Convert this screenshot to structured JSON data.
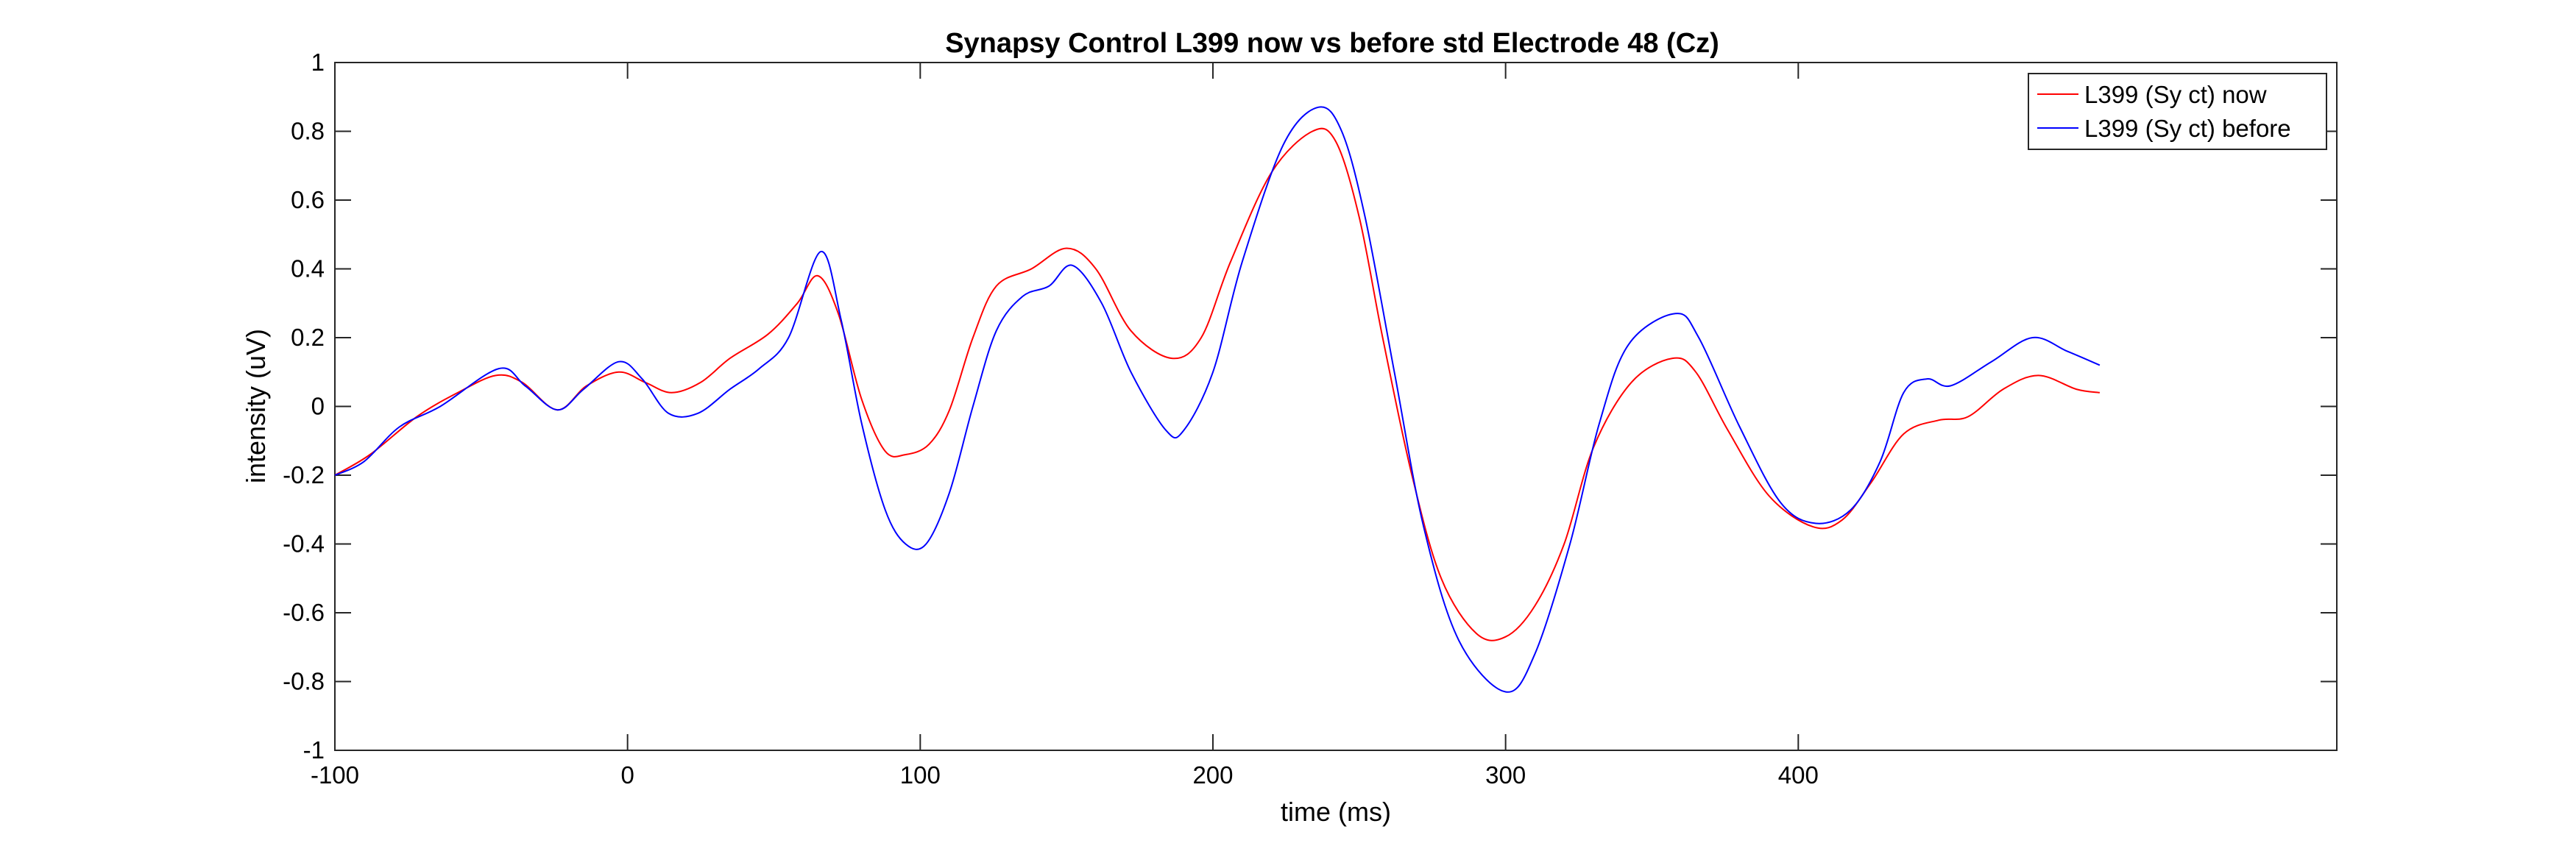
{
  "chart_data": {
    "type": "line",
    "title": "Synapsy Control L399 now vs before std Electrode 48 (Cz)",
    "xlabel": "time (ms)",
    "ylabel": "intensity (uV)",
    "xlim": [
      -100,
      584
    ],
    "ylim": [
      -1,
      1
    ],
    "xticks": [
      -100,
      0,
      100,
      200,
      300,
      400
    ],
    "yticks": [
      -1,
      -0.8,
      -0.6,
      -0.4,
      -0.2,
      0,
      0.2,
      0.4,
      0.6,
      0.8,
      1
    ],
    "grid": false,
    "legend_position": "top-right",
    "series": [
      {
        "name": "L399 (Sy ct) now",
        "color": "#ff0000",
        "points": [
          [
            -100,
            -0.2
          ],
          [
            -88,
            -0.14
          ],
          [
            -72,
            -0.03
          ],
          [
            -58,
            0.04
          ],
          [
            -45,
            0.09
          ],
          [
            -36,
            0.07
          ],
          [
            -24,
            -0.01
          ],
          [
            -14,
            0.06
          ],
          [
            -3,
            0.1
          ],
          [
            6,
            0.07
          ],
          [
            15,
            0.04
          ],
          [
            25,
            0.07
          ],
          [
            35,
            0.14
          ],
          [
            48,
            0.21
          ],
          [
            58,
            0.3
          ],
          [
            65,
            0.38
          ],
          [
            72,
            0.27
          ],
          [
            80,
            0.02
          ],
          [
            88,
            -0.13
          ],
          [
            95,
            -0.14
          ],
          [
            103,
            -0.11
          ],
          [
            110,
            -0.01
          ],
          [
            118,
            0.2
          ],
          [
            126,
            0.35
          ],
          [
            138,
            0.4
          ],
          [
            150,
            0.46
          ],
          [
            160,
            0.4
          ],
          [
            172,
            0.22
          ],
          [
            186,
            0.14
          ],
          [
            196,
            0.2
          ],
          [
            206,
            0.42
          ],
          [
            220,
            0.68
          ],
          [
            234,
            0.8
          ],
          [
            242,
            0.77
          ],
          [
            250,
            0.55
          ],
          [
            258,
            0.2
          ],
          [
            268,
            -0.2
          ],
          [
            278,
            -0.5
          ],
          [
            290,
            -0.66
          ],
          [
            300,
            -0.67
          ],
          [
            310,
            -0.58
          ],
          [
            320,
            -0.4
          ],
          [
            330,
            -0.12
          ],
          [
            343,
            0.07
          ],
          [
            357,
            0.14
          ],
          [
            365,
            0.1
          ],
          [
            376,
            -0.07
          ],
          [
            390,
            -0.26
          ],
          [
            405,
            -0.35
          ],
          [
            415,
            -0.33
          ],
          [
            425,
            -0.22
          ],
          [
            436,
            -0.08
          ],
          [
            448,
            -0.04
          ],
          [
            458,
            -0.03
          ],
          [
            470,
            0.05
          ],
          [
            482,
            0.09
          ],
          [
            495,
            0.05
          ],
          [
            503,
            0.04
          ]
        ]
      },
      {
        "name": "L399 (Sy ct) before",
        "color": "#0000ff",
        "points": [
          [
            -100,
            -0.2
          ],
          [
            -90,
            -0.16
          ],
          [
            -78,
            -0.06
          ],
          [
            -64,
            0.0
          ],
          [
            -44,
            0.11
          ],
          [
            -35,
            0.06
          ],
          [
            -24,
            -0.01
          ],
          [
            -15,
            0.05
          ],
          [
            -3,
            0.13
          ],
          [
            5,
            0.08
          ],
          [
            14,
            -0.02
          ],
          [
            24,
            -0.02
          ],
          [
            35,
            0.05
          ],
          [
            45,
            0.11
          ],
          [
            55,
            0.2
          ],
          [
            66,
            0.45
          ],
          [
            73,
            0.25
          ],
          [
            80,
            -0.05
          ],
          [
            88,
            -0.3
          ],
          [
            95,
            -0.4
          ],
          [
            102,
            -0.4
          ],
          [
            110,
            -0.25
          ],
          [
            118,
            0.0
          ],
          [
            126,
            0.22
          ],
          [
            135,
            0.32
          ],
          [
            144,
            0.35
          ],
          [
            152,
            0.41
          ],
          [
            162,
            0.3
          ],
          [
            172,
            0.1
          ],
          [
            184,
            -0.07
          ],
          [
            190,
            -0.07
          ],
          [
            200,
            0.1
          ],
          [
            210,
            0.42
          ],
          [
            224,
            0.76
          ],
          [
            236,
            0.87
          ],
          [
            244,
            0.8
          ],
          [
            252,
            0.55
          ],
          [
            262,
            0.1
          ],
          [
            272,
            -0.35
          ],
          [
            284,
            -0.68
          ],
          [
            300,
            -0.83
          ],
          [
            310,
            -0.72
          ],
          [
            322,
            -0.4
          ],
          [
            332,
            -0.05
          ],
          [
            342,
            0.18
          ],
          [
            358,
            0.27
          ],
          [
            366,
            0.2
          ],
          [
            380,
            -0.06
          ],
          [
            394,
            -0.28
          ],
          [
            406,
            -0.34
          ],
          [
            418,
            -0.3
          ],
          [
            428,
            -0.16
          ],
          [
            436,
            0.04
          ],
          [
            444,
            0.08
          ],
          [
            452,
            0.06
          ],
          [
            466,
            0.13
          ],
          [
            480,
            0.2
          ],
          [
            492,
            0.16
          ],
          [
            503,
            0.12
          ]
        ]
      }
    ]
  }
}
